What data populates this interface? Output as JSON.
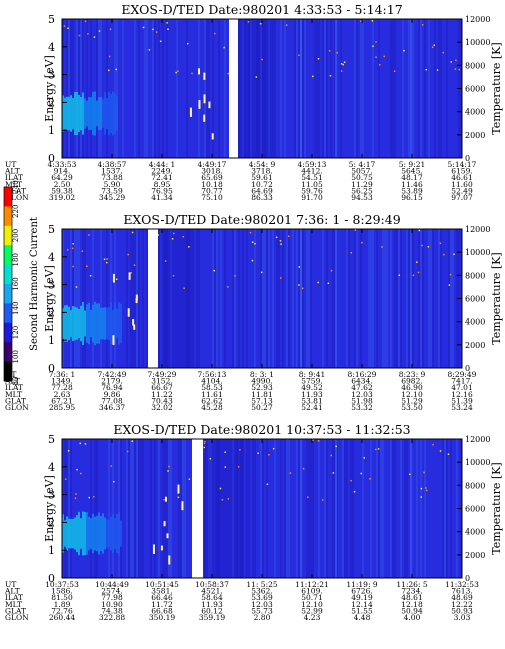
{
  "colors": {
    "background": "#2a28d8",
    "ramp": [
      "#000000",
      "#3a006a",
      "#1a1ad8",
      "#1e5cf0",
      "#18a8f0",
      "#00e0d0",
      "#00ff60",
      "#f0f000",
      "#ff8c00",
      "#ff0000"
    ]
  },
  "colorbar": {
    "label": "Second Harmonic Current",
    "ticks": [
      "80",
      "100",
      "120",
      "140",
      "160",
      "180",
      "200",
      "220",
      "240"
    ]
  },
  "chart_data": [
    {
      "type": "heatmap",
      "title": "EXOS-D/TED   Date:980201  4:33:53 - 5:14:17",
      "ylabel": "Energy [eV]",
      "ylabel_right": "Temperature [K]",
      "ylim": [
        0,
        5
      ],
      "ylim_right": [
        0,
        12000
      ],
      "yticks": [
        "0",
        "1",
        "2",
        "3",
        "4",
        "5"
      ],
      "yticks_right": [
        "0",
        "2000",
        "4000",
        "6000",
        "8000",
        "10000",
        "12000"
      ],
      "row_labels": [
        "UT",
        "ALT",
        "ILAT",
        "MLT",
        "GLAT",
        "GLON"
      ],
      "columns": [
        [
          "4:33:53",
          "914.",
          "64.29",
          "2.50",
          "59.38",
          "319.02"
        ],
        [
          "4:38:57",
          "1537.",
          "73.88",
          "5.90",
          "73.59",
          "345.29"
        ],
        [
          "4:44: 1",
          "2249.",
          "72.41",
          "8.95",
          "76.95",
          "41.34"
        ],
        [
          "4:49:17",
          "3018.",
          "65.69",
          "10.18",
          "70.77",
          "75.10"
        ],
        [
          "4:54: 9",
          "3718.",
          "59.61",
          "10.72",
          "64.69",
          "86.33"
        ],
        [
          "4:59:13",
          "4412.",
          "54.51",
          "11.05",
          "59.76",
          "91.70"
        ],
        [
          "5: 4:17",
          "5057.",
          "50.75",
          "11.29",
          "56.25",
          "94.53"
        ],
        [
          "5: 9:21",
          "5645.",
          "48.17",
          "11.46",
          "53.89",
          "96.15"
        ],
        [
          "5:14:17",
          "6159.",
          "46.61",
          "11.60",
          "52.49",
          "97.07"
        ]
      ]
    },
    {
      "type": "heatmap",
      "title": "EXOS-D/TED   Date:980201  7:36: 1 - 8:29:49",
      "ylabel": "Energy [eV]",
      "ylabel_right": "Temperature [K]",
      "ylim": [
        0,
        5
      ],
      "ylim_right": [
        0,
        12000
      ],
      "yticks": [
        "0",
        "1",
        "2",
        "3",
        "4",
        "5"
      ],
      "yticks_right": [
        "0",
        "2000",
        "4000",
        "6000",
        "8000",
        "10000",
        "12000"
      ],
      "row_labels": [
        "UT",
        "ALT",
        "ILAT",
        "MLT",
        "GLAT",
        "GLON"
      ],
      "columns": [
        [
          "7:36: 1",
          "1349.",
          "77.28",
          "2.63",
          "67.21",
          "285.95"
        ],
        [
          "7:42:49",
          "2179.",
          "76.94",
          "9.86",
          "77.08",
          "346.37"
        ],
        [
          "7:49:29",
          "3152.",
          "66.67",
          "11.22",
          "70.43",
          "32.02"
        ],
        [
          "7:56:13",
          "4104.",
          "58.53",
          "11.61",
          "62.62",
          "45.28"
        ],
        [
          "8: 3: 1",
          "4990.",
          "52.93",
          "11.81",
          "57.13",
          "50.27"
        ],
        [
          "8: 9:41",
          "5759.",
          "49.52",
          "11.93",
          "53.81",
          "52.41"
        ],
        [
          "8:16:29",
          "6434.",
          "47.62",
          "12.03",
          "51.98",
          "53.32"
        ],
        [
          "8:23: 9",
          "6982.",
          "46.90",
          "12.10",
          "51.29",
          "53.50"
        ],
        [
          "8:29:49",
          "7417.",
          "47.01",
          "12.16",
          "51.39",
          "53.24"
        ]
      ]
    },
    {
      "type": "heatmap",
      "title": "EXOS-D/TED   Date:980201  10:37:53 - 11:32:53",
      "ylabel": "Energy [eV]",
      "ylabel_right": "Temperature [K]",
      "ylim": [
        0,
        5
      ],
      "ylim_right": [
        0,
        12000
      ],
      "yticks": [
        "0",
        "1",
        "2",
        "3",
        "4",
        "5"
      ],
      "yticks_right": [
        "0",
        "2000",
        "4000",
        "6000",
        "8000",
        "10000",
        "12000"
      ],
      "row_labels": [
        "UT",
        "ALT",
        "ILAT",
        "MLT",
        "GLAT",
        "GLON"
      ],
      "columns": [
        [
          "10:37:53",
          "1586.",
          "81.50",
          "1.89",
          "72.76",
          "260.44"
        ],
        [
          "10:44:49",
          "2574.",
          "77.98",
          "10.90",
          "74.38",
          "322.88"
        ],
        [
          "10:51:45",
          "3581.",
          "66.46",
          "11.72",
          "66.68",
          "350.19"
        ],
        [
          "10:58:37",
          "4521.",
          "58.64",
          "11.93",
          "60.12",
          "359.19"
        ],
        [
          "11: 5:25",
          "5362.",
          "53.69",
          "12.03",
          "55.73",
          "2.80"
        ],
        [
          "11:12:21",
          "6109.",
          "50.71",
          "12.10",
          "52.99",
          "4.23"
        ],
        [
          "11:19: 9",
          "6726.",
          "49.19",
          "12.14",
          "51.55",
          "4.48"
        ],
        [
          "11:26: 5",
          "7234.",
          "48.61",
          "12.18",
          "50.94",
          "4.00"
        ],
        [
          "11:32:53",
          "7613.",
          "48.69",
          "12.22",
          "50.93",
          "3.03"
        ]
      ]
    }
  ]
}
